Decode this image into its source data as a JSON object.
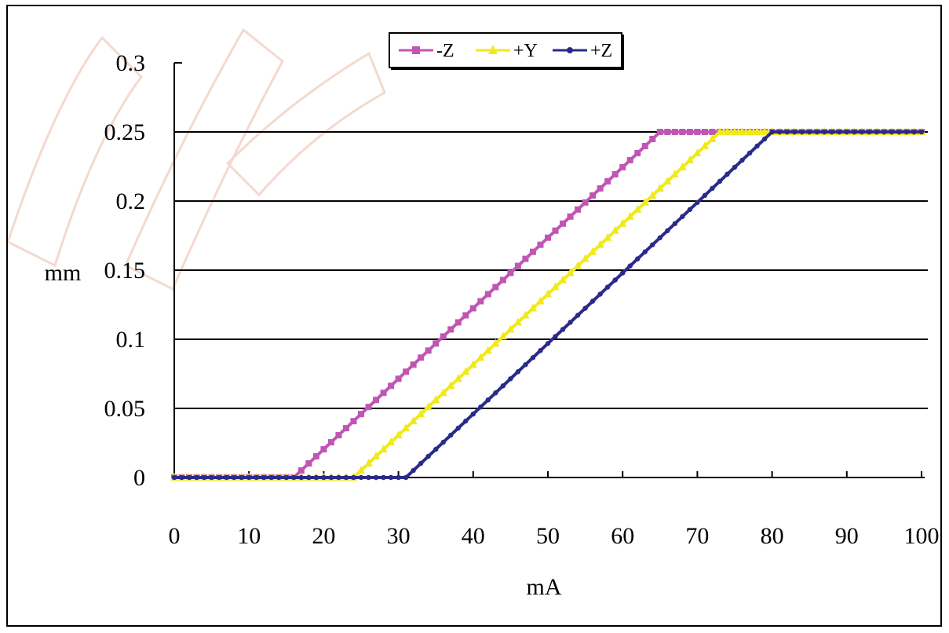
{
  "chart_data": {
    "type": "line",
    "title": "",
    "xlabel": "mA",
    "ylabel": "mm",
    "xlim": [
      0,
      100
    ],
    "ylim": [
      0,
      0.3
    ],
    "x_ticks": [
      "0",
      "10",
      "20",
      "30",
      "40",
      "50",
      "60",
      "70",
      "80",
      "90",
      "100"
    ],
    "y_ticks": [
      "0",
      "0.05",
      "0.1",
      "0.15",
      "0.2",
      "0.25",
      "0.3"
    ],
    "grid": "horizontal",
    "legend_position": "top",
    "series": [
      {
        "name": "-Z",
        "color": "#c056b4",
        "marker": "square",
        "points": [
          [
            0,
            0
          ],
          [
            16,
            0
          ],
          [
            65,
            0.25
          ],
          [
            100,
            0.25
          ]
        ]
      },
      {
        "name": "+Y",
        "color": "#f0ea1a",
        "marker": "triangle",
        "points": [
          [
            0,
            0
          ],
          [
            24,
            0
          ],
          [
            73,
            0.25
          ],
          [
            100,
            0.25
          ]
        ]
      },
      {
        "name": "+Z",
        "color": "#2a2a8a",
        "marker": "circle",
        "points": [
          [
            0,
            0
          ],
          [
            31,
            0
          ],
          [
            80,
            0.25
          ],
          [
            100,
            0.25
          ]
        ]
      }
    ]
  }
}
